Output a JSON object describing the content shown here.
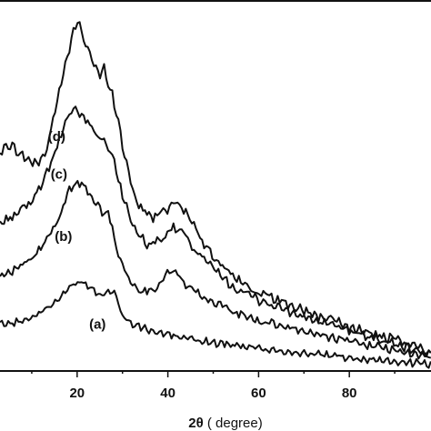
{
  "chart_data": {
    "type": "line",
    "xlabel": "2θ ( degree)",
    "ylabel": "",
    "title": "",
    "xlim": [
      3,
      98
    ],
    "ylim": [
      0,
      44
    ],
    "x_ticks": [
      "20",
      "40",
      "60",
      "80"
    ],
    "grid": false,
    "legend": "none",
    "series": [
      {
        "name": "(a)",
        "x": [
          3,
          6,
          10,
          14,
          17,
          19,
          21,
          23,
          25,
          27,
          28,
          30,
          32,
          35,
          40,
          45,
          50,
          60,
          70,
          80,
          90,
          98
        ],
        "y": [
          5.5,
          5.6,
          6.3,
          7.6,
          9.0,
          10.3,
          10.6,
          9.9,
          9.1,
          9.2,
          9.8,
          6.5,
          5.5,
          4.9,
          4.2,
          3.7,
          3.3,
          2.6,
          2.0,
          1.5,
          1.0,
          0.7
        ]
      },
      {
        "name": "(b)",
        "x": [
          3,
          6,
          10,
          13,
          16,
          18,
          20,
          22,
          24,
          26,
          27,
          29,
          32,
          35,
          38,
          40,
          42,
          44,
          48,
          55,
          60,
          70,
          80,
          90,
          98
        ],
        "y": [
          11.3,
          12.0,
          13.2,
          15.3,
          18.0,
          21.5,
          22.5,
          21.7,
          20.1,
          18.4,
          18.8,
          13.8,
          10.2,
          9.3,
          10.1,
          11.8,
          11.6,
          10.3,
          8.7,
          6.8,
          5.9,
          4.6,
          3.5,
          2.3,
          1.5
        ]
      },
      {
        "name": "(c)",
        "x": [
          3,
          6,
          10,
          13,
          16,
          18,
          20,
          22,
          24,
          26,
          28,
          30,
          33,
          36,
          39,
          41,
          43,
          46,
          50,
          55,
          60,
          70,
          80,
          90,
          98
        ],
        "y": [
          17.5,
          18.5,
          20.0,
          23.3,
          27.2,
          30.4,
          31.0,
          29.8,
          28.3,
          27.5,
          25.2,
          21.0,
          16.2,
          14.9,
          15.6,
          17.0,
          16.6,
          14.4,
          12.0,
          9.7,
          8.4,
          6.3,
          4.7,
          3.1,
          1.9
        ]
      },
      {
        "name": "(d)",
        "x": [
          3,
          5,
          7,
          9,
          11,
          13,
          15,
          17,
          19,
          20,
          21,
          23,
          25,
          26,
          28,
          30,
          32,
          34,
          37,
          40,
          42,
          44,
          47,
          50,
          55,
          60,
          70,
          80,
          90,
          98
        ],
        "y": [
          26.0,
          27.0,
          26.2,
          25.2,
          24.5,
          26.0,
          30.5,
          35.5,
          40.0,
          41.8,
          40.5,
          37.5,
          35.0,
          36.0,
          32.5,
          27.0,
          22.0,
          19.3,
          18.2,
          19.4,
          20.3,
          18.9,
          16.0,
          13.3,
          11.1,
          9.2,
          7.1,
          5.2,
          3.5,
          2.2
        ]
      }
    ]
  }
}
